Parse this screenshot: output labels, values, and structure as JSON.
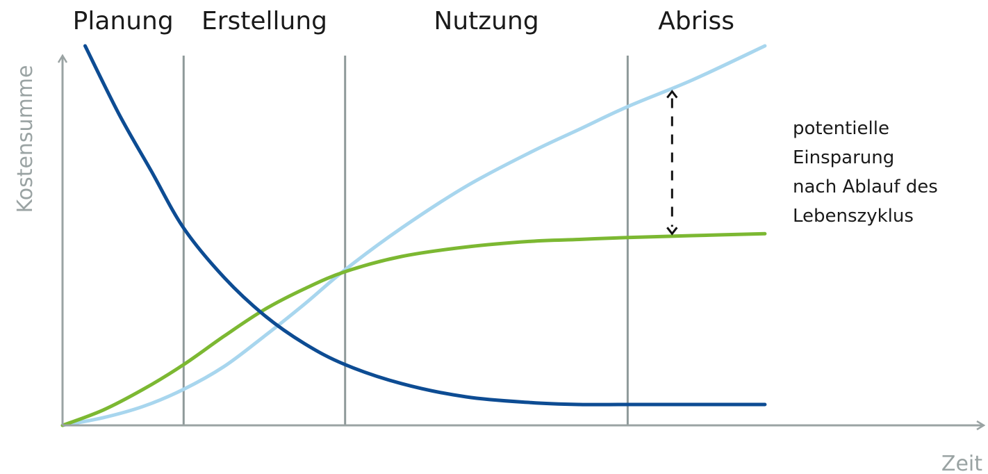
{
  "chart_data": {
    "type": "line",
    "title": "",
    "xlabel": "Zeit",
    "ylabel": "Kostensumme",
    "grid": false,
    "x_range": [
      0,
      100
    ],
    "y_range": [
      0,
      100
    ],
    "phases": [
      {
        "label": "Planung",
        "start": 0,
        "end": 15
      },
      {
        "label": "Erstellung",
        "start": 15,
        "end": 35
      },
      {
        "label": "Nutzung",
        "start": 35,
        "end": 70
      },
      {
        "label": "Abriss",
        "start": 70,
        "end": 87
      }
    ],
    "phase_boundaries": [
      15,
      35,
      70
    ],
    "series": [
      {
        "key": "dark-blue",
        "color": "#0d4c93",
        "x": [
          2.8,
          7,
          11,
          15,
          20,
          25,
          30,
          35,
          42,
          50,
          58,
          64,
          70,
          78,
          87
        ],
        "y": [
          100,
          82,
          67,
          52,
          39,
          29,
          21.5,
          16,
          11,
          7.5,
          6,
          5.5,
          5.5,
          5.5,
          5.5
        ]
      },
      {
        "key": "light-blue",
        "color": "#a8d6ee",
        "x": [
          0,
          5,
          10,
          15,
          20,
          25,
          30,
          35,
          42,
          50,
          58,
          64,
          70,
          78,
          87
        ],
        "y": [
          0,
          2,
          5,
          9.5,
          15.5,
          23.5,
          32,
          41,
          52,
          63,
          72,
          78,
          84,
          91,
          100
        ]
      },
      {
        "key": "green",
        "color": "#7cb832",
        "x": [
          0,
          5,
          10,
          15,
          20,
          25,
          30,
          35,
          42,
          50,
          58,
          64,
          70,
          78,
          87
        ],
        "y": [
          0,
          4,
          9.5,
          16,
          23.5,
          30.5,
          36,
          40.5,
          44.5,
          47,
          48.5,
          49,
          49.5,
          50,
          50.5
        ]
      }
    ],
    "annotation": {
      "lines": [
        "potentielle",
        "Einsparung",
        "nach Ablauf des",
        "Lebenszyklus"
      ],
      "arrow_x": 75.5,
      "arrow_y_range": [
        50.5,
        88
      ]
    },
    "colors": {
      "axis": "#9aa3a3",
      "phase_divider": "#8f9a9a"
    }
  }
}
